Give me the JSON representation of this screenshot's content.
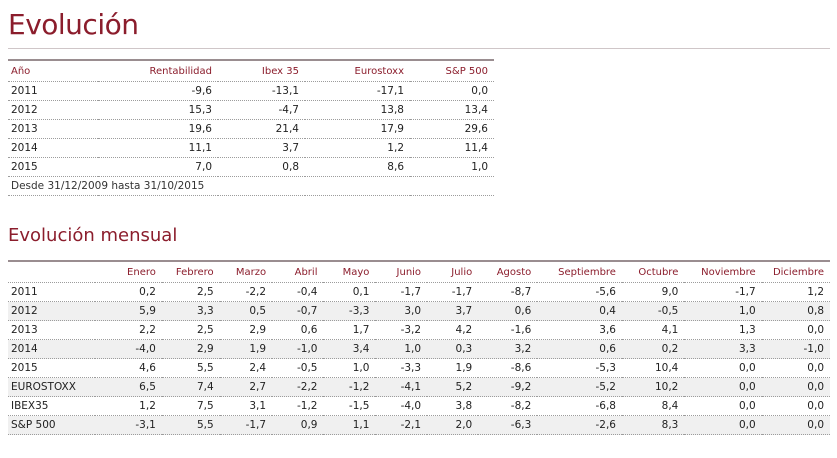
{
  "title": "Evolución",
  "annual": {
    "headers": [
      "Año",
      "Rentabilidad",
      "Ibex 35",
      "Eurostoxx",
      "S&P 500"
    ],
    "rows": [
      [
        "2011",
        "-9,6",
        "-13,1",
        "-17,1",
        "0,0"
      ],
      [
        "2012",
        "15,3",
        "-4,7",
        "13,8",
        "13,4"
      ],
      [
        "2013",
        "19,6",
        "21,4",
        "17,9",
        "29,6"
      ],
      [
        "2014",
        "11,1",
        "3,7",
        "1,2",
        "11,4"
      ],
      [
        "2015",
        "7,0",
        "0,8",
        "8,6",
        "1,0"
      ]
    ],
    "note": "Desde 31/12/2009 hasta 31/10/2015"
  },
  "monthly": {
    "title": "Evolución mensual",
    "headers": [
      "",
      "Enero",
      "Febrero",
      "Marzo",
      "Abril",
      "Mayo",
      "Junio",
      "Julio",
      "Agosto",
      "Septiembre",
      "Octubre",
      "Noviembre",
      "Diciembre"
    ],
    "rows": [
      [
        "2011",
        "0,2",
        "2,5",
        "-2,2",
        "-0,4",
        "0,1",
        "-1,7",
        "-1,7",
        "-8,7",
        "-5,6",
        "9,0",
        "-1,7",
        "1,2"
      ],
      [
        "2012",
        "5,9",
        "3,3",
        "0,5",
        "-0,7",
        "-3,3",
        "3,0",
        "3,7",
        "0,6",
        "0,4",
        "-0,5",
        "1,0",
        "0,8"
      ],
      [
        "2013",
        "2,2",
        "2,5",
        "2,9",
        "0,6",
        "1,7",
        "-3,2",
        "4,2",
        "-1,6",
        "3,6",
        "4,1",
        "1,3",
        "0,0"
      ],
      [
        "2014",
        "-4,0",
        "2,9",
        "1,9",
        "-1,0",
        "3,4",
        "1,0",
        "0,3",
        "3,2",
        "0,6",
        "0,2",
        "3,3",
        "-1,0"
      ],
      [
        "2015",
        "4,6",
        "5,5",
        "2,4",
        "-0,5",
        "1,0",
        "-3,3",
        "1,9",
        "-8,6",
        "-5,3",
        "10,4",
        "0,0",
        "0,0"
      ],
      [
        "EUROSTOXX",
        "6,5",
        "7,4",
        "2,7",
        "-2,2",
        "-1,2",
        "-4,1",
        "5,2",
        "-9,2",
        "-5,2",
        "10,2",
        "0,0",
        "0,0"
      ],
      [
        "IBEX35",
        "1,2",
        "7,5",
        "3,1",
        "-1,2",
        "-1,5",
        "-4,0",
        "3,8",
        "-8,2",
        "-6,8",
        "8,4",
        "0,0",
        "0,0"
      ],
      [
        "S&P 500",
        "-3,1",
        "5,5",
        "-1,7",
        "0,9",
        "1,1",
        "-2,1",
        "2,0",
        "-6,3",
        "-2,6",
        "8,3",
        "0,0",
        "0,0"
      ]
    ]
  }
}
